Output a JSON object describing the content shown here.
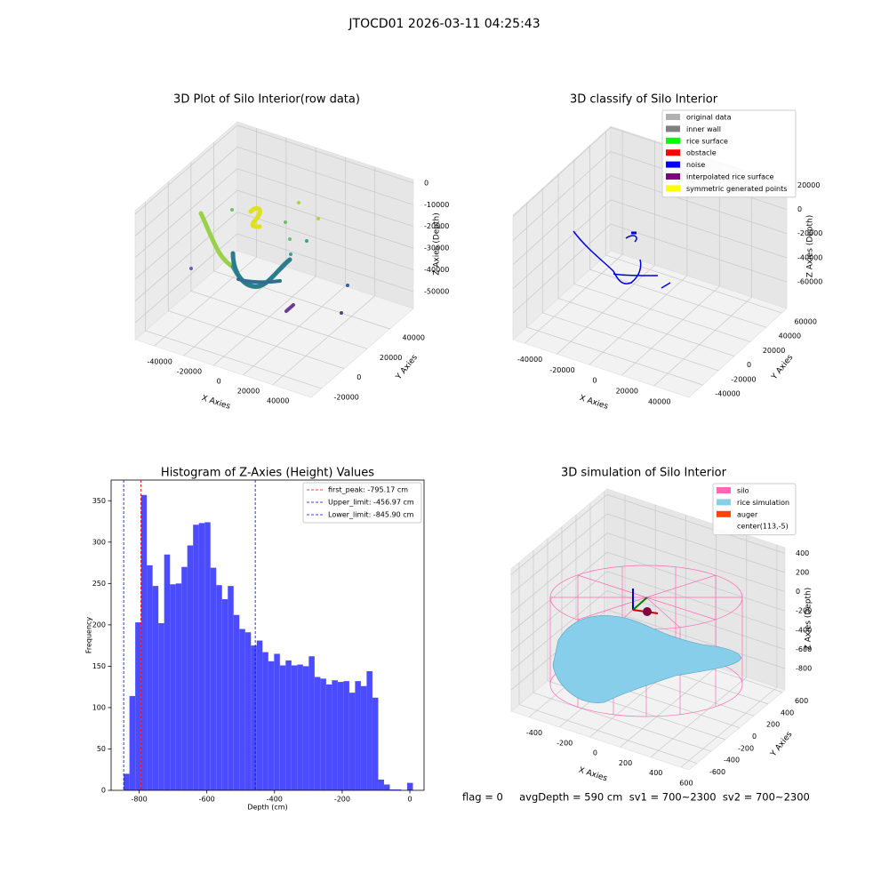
{
  "suptitle": "JTOCD01 2026-03-11 04:25:43",
  "status": "flag = 0     avgDepth = 590 cm  sv1 = 700~2300  sv2 = 700~2300",
  "chart_data": [
    {
      "type": "scatter3d",
      "title": "3D Plot of Silo Interior(row data)",
      "xlabel": "X Axies",
      "ylabel": "Y Axies",
      "zlabel": "Z Axies (Depth)",
      "xlim": [
        -53000,
        66000
      ],
      "ylim": [
        -29000,
        60600
      ],
      "zlim": [
        -57800,
        1600
      ],
      "xticks": [
        -40000,
        -20000,
        0,
        20000,
        40000
      ],
      "yticks": [
        -20000,
        0,
        20000,
        40000
      ],
      "zticks": [
        0,
        -10000,
        -20000,
        -30000,
        -40000,
        -50000
      ]
    },
    {
      "type": "scatter3d",
      "title": "3D classify of Silo Interior",
      "xlabel": "X Axies",
      "ylabel": "Y Axies",
      "zlabel": "Z Axies (Depth)",
      "xlim": [
        -47200,
        61600
      ],
      "ylim": [
        -57300,
        66200
      ],
      "zlim": [
        -82000,
        21000
      ],
      "xticks": [
        -40000,
        -20000,
        0,
        20000,
        40000
      ],
      "yticks": [
        -40000,
        -20000,
        0,
        20000,
        40000,
        60000
      ],
      "zticks": [
        20000,
        0,
        -20000,
        -40000,
        -60000
      ],
      "legend": [
        {
          "name": "original data",
          "color": "#b0b0b0"
        },
        {
          "name": "inner wall",
          "color": "#808080"
        },
        {
          "name": "rice surface",
          "color": "#00ff00"
        },
        {
          "name": "obstacle",
          "color": "#ff0000"
        },
        {
          "name": "noise",
          "color": "#0000ff"
        },
        {
          "name": "interpolated rice surface",
          "color": "#800080"
        },
        {
          "name": "symmetric generated points",
          "color": "#ffff00"
        }
      ]
    },
    {
      "type": "histogram",
      "title": "Histogram of Z-Axies (Height) Values",
      "xlabel": "Depth (cm)",
      "ylabel": "Frequency",
      "color": "#4b4bff",
      "xlim": [
        -883,
        42
      ],
      "ylim": [
        0,
        375
      ],
      "xticks": [
        -800,
        -600,
        -400,
        -200,
        0
      ],
      "yticks": [
        0,
        50,
        100,
        150,
        200,
        250,
        300,
        350
      ],
      "bins": [
        -845.9,
        -828.8,
        -811.7,
        -794.6,
        -777.5,
        -760.4,
        -743.3,
        -726.2,
        -709.1,
        -692.0,
        -674.9,
        -657.8,
        -640.7,
        -623.6,
        -606.5,
        -589.4,
        -572.3,
        -555.2,
        -538.1,
        -521.0,
        -503.9,
        -486.8,
        -469.7,
        -452.6,
        -435.5,
        -418.4,
        -401.3,
        -384.2,
        -367.1,
        -350.0,
        -332.9,
        -315.8,
        -298.7,
        -281.6,
        -264.5,
        -247.4,
        -230.3,
        -213.2,
        -196.1,
        -179.0,
        -161.9,
        -144.8,
        -127.7,
        -110.6,
        -93.5,
        -76.4,
        -59.3,
        -42.2,
        -25.1,
        -8.0,
        9.1
      ],
      "values": [
        20,
        114,
        203,
        357,
        272,
        247,
        202,
        285,
        249,
        250,
        270,
        296,
        321,
        323,
        324,
        269,
        248,
        231,
        247,
        212,
        195,
        191,
        175,
        181,
        167,
        156,
        165,
        151,
        157,
        151,
        152,
        150,
        162,
        137,
        135,
        128,
        133,
        131,
        132,
        118,
        132,
        126,
        144,
        112,
        13,
        7,
        1,
        1,
        0,
        9
      ],
      "vlines": [
        {
          "name": "first_peak: -795.17 cm",
          "value": -795.17,
          "color": "#ff0000"
        },
        {
          "name": "Upper_limit: -456.97 cm",
          "value": -456.97,
          "color": "#0000ff"
        },
        {
          "name": "Lower_limit: -845.90 cm",
          "value": -845.9,
          "color": "#0000ff"
        }
      ]
    },
    {
      "type": "surface3d",
      "title": "3D simulation of Silo Interior",
      "xlabel": "X Axies",
      "ylabel": "Y Axies",
      "zlabel": "Z Axies (Depth)",
      "xlim": [
        -517,
        653
      ],
      "ylim": [
        -712,
        638
      ],
      "zlim": [
        -1022,
        459
      ],
      "xticks": [
        -400,
        -200,
        0,
        200,
        400,
        600
      ],
      "yticks": [
        -600,
        -400,
        -200,
        0,
        200,
        400,
        600
      ],
      "zticks": [
        400,
        200,
        0,
        -200,
        -400,
        -600,
        -800
      ],
      "legend": [
        {
          "name": "silo",
          "color": "#ff69b4"
        },
        {
          "name": "rice simulation",
          "color": "#87ceeb"
        },
        {
          "name": "auger",
          "color": "#ff4500"
        },
        {
          "name": "center(113,-5)",
          "color": "#ffffff"
        }
      ]
    }
  ]
}
